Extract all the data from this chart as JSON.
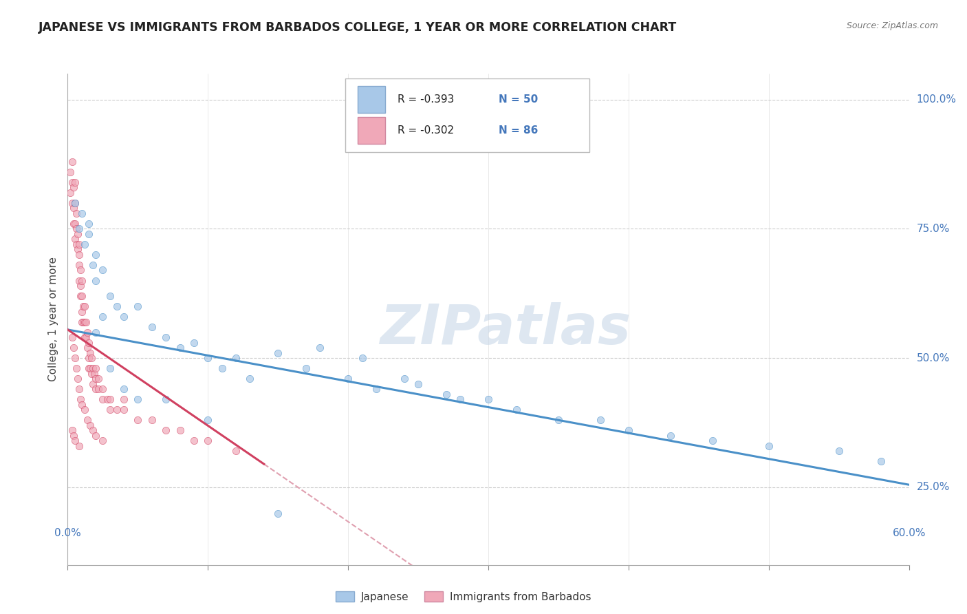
{
  "title": "JAPANESE VS IMMIGRANTS FROM BARBADOS COLLEGE, 1 YEAR OR MORE CORRELATION CHART",
  "source": "Source: ZipAtlas.com",
  "ylabel": "College, 1 year or more",
  "right_ytick_vals": [
    1.0,
    0.75,
    0.5,
    0.25
  ],
  "right_ytick_labels": [
    "100.0%",
    "75.0%",
    "50.0%",
    "25.0%"
  ],
  "watermark": "ZIPatlas",
  "legend_r1": "R = -0.393",
  "legend_n1": "N = 50",
  "legend_r2": "R = -0.302",
  "legend_n2": "N = 86",
  "color_japanese": "#a8c8e8",
  "color_barbados": "#f0a8b8",
  "color_line_japanese": "#4a90c8",
  "color_line_barbados": "#d04060",
  "color_line_barbados_dash": "#e0a0b0",
  "japanese_x": [
    0.005,
    0.008,
    0.01,
    0.012,
    0.015,
    0.015,
    0.018,
    0.02,
    0.02,
    0.025,
    0.03,
    0.035,
    0.04,
    0.05,
    0.06,
    0.07,
    0.08,
    0.09,
    0.1,
    0.11,
    0.12,
    0.13,
    0.15,
    0.17,
    0.18,
    0.2,
    0.21,
    0.22,
    0.24,
    0.25,
    0.27,
    0.28,
    0.3,
    0.32,
    0.35,
    0.38,
    0.4,
    0.43,
    0.46,
    0.5,
    0.55,
    0.58,
    0.02,
    0.025,
    0.03,
    0.04,
    0.05,
    0.07,
    0.1,
    0.15
  ],
  "japanese_y": [
    0.8,
    0.75,
    0.78,
    0.72,
    0.74,
    0.76,
    0.68,
    0.7,
    0.65,
    0.67,
    0.62,
    0.6,
    0.58,
    0.6,
    0.56,
    0.54,
    0.52,
    0.53,
    0.5,
    0.48,
    0.5,
    0.46,
    0.51,
    0.48,
    0.52,
    0.46,
    0.5,
    0.44,
    0.46,
    0.45,
    0.43,
    0.42,
    0.42,
    0.4,
    0.38,
    0.38,
    0.36,
    0.35,
    0.34,
    0.33,
    0.32,
    0.3,
    0.55,
    0.58,
    0.48,
    0.44,
    0.42,
    0.42,
    0.38,
    0.2
  ],
  "barbados_x": [
    0.002,
    0.002,
    0.003,
    0.003,
    0.003,
    0.004,
    0.004,
    0.004,
    0.005,
    0.005,
    0.005,
    0.005,
    0.006,
    0.006,
    0.006,
    0.007,
    0.007,
    0.008,
    0.008,
    0.008,
    0.008,
    0.009,
    0.009,
    0.009,
    0.01,
    0.01,
    0.01,
    0.01,
    0.011,
    0.011,
    0.012,
    0.012,
    0.012,
    0.013,
    0.013,
    0.014,
    0.014,
    0.015,
    0.015,
    0.015,
    0.016,
    0.016,
    0.017,
    0.017,
    0.018,
    0.018,
    0.019,
    0.02,
    0.02,
    0.02,
    0.022,
    0.022,
    0.025,
    0.025,
    0.028,
    0.03,
    0.03,
    0.035,
    0.04,
    0.04,
    0.05,
    0.06,
    0.07,
    0.08,
    0.09,
    0.1,
    0.12,
    0.003,
    0.004,
    0.005,
    0.006,
    0.007,
    0.008,
    0.009,
    0.01,
    0.012,
    0.014,
    0.016,
    0.018,
    0.02,
    0.025,
    0.003,
    0.004,
    0.005,
    0.008
  ],
  "barbados_y": [
    0.86,
    0.82,
    0.88,
    0.84,
    0.8,
    0.83,
    0.79,
    0.76,
    0.84,
    0.8,
    0.76,
    0.73,
    0.78,
    0.75,
    0.72,
    0.74,
    0.71,
    0.72,
    0.68,
    0.65,
    0.7,
    0.67,
    0.64,
    0.62,
    0.65,
    0.62,
    0.59,
    0.57,
    0.6,
    0.57,
    0.6,
    0.57,
    0.54,
    0.57,
    0.54,
    0.55,
    0.52,
    0.53,
    0.5,
    0.48,
    0.51,
    0.48,
    0.5,
    0.47,
    0.48,
    0.45,
    0.47,
    0.48,
    0.46,
    0.44,
    0.46,
    0.44,
    0.44,
    0.42,
    0.42,
    0.42,
    0.4,
    0.4,
    0.42,
    0.4,
    0.38,
    0.38,
    0.36,
    0.36,
    0.34,
    0.34,
    0.32,
    0.54,
    0.52,
    0.5,
    0.48,
    0.46,
    0.44,
    0.42,
    0.41,
    0.4,
    0.38,
    0.37,
    0.36,
    0.35,
    0.34,
    0.36,
    0.35,
    0.34,
    0.33
  ],
  "xlim": [
    0.0,
    0.6
  ],
  "ylim": [
    0.1,
    1.05
  ],
  "line_japanese_x0": 0.0,
  "line_japanese_x1": 0.6,
  "line_japanese_y0": 0.555,
  "line_japanese_y1": 0.255,
  "line_barbados_solid_x0": 0.0,
  "line_barbados_solid_x1": 0.14,
  "line_barbados_y0": 0.555,
  "line_barbados_y1": 0.295,
  "line_barbados_dash_x0": 0.14,
  "line_barbados_dash_x1": 0.38
}
